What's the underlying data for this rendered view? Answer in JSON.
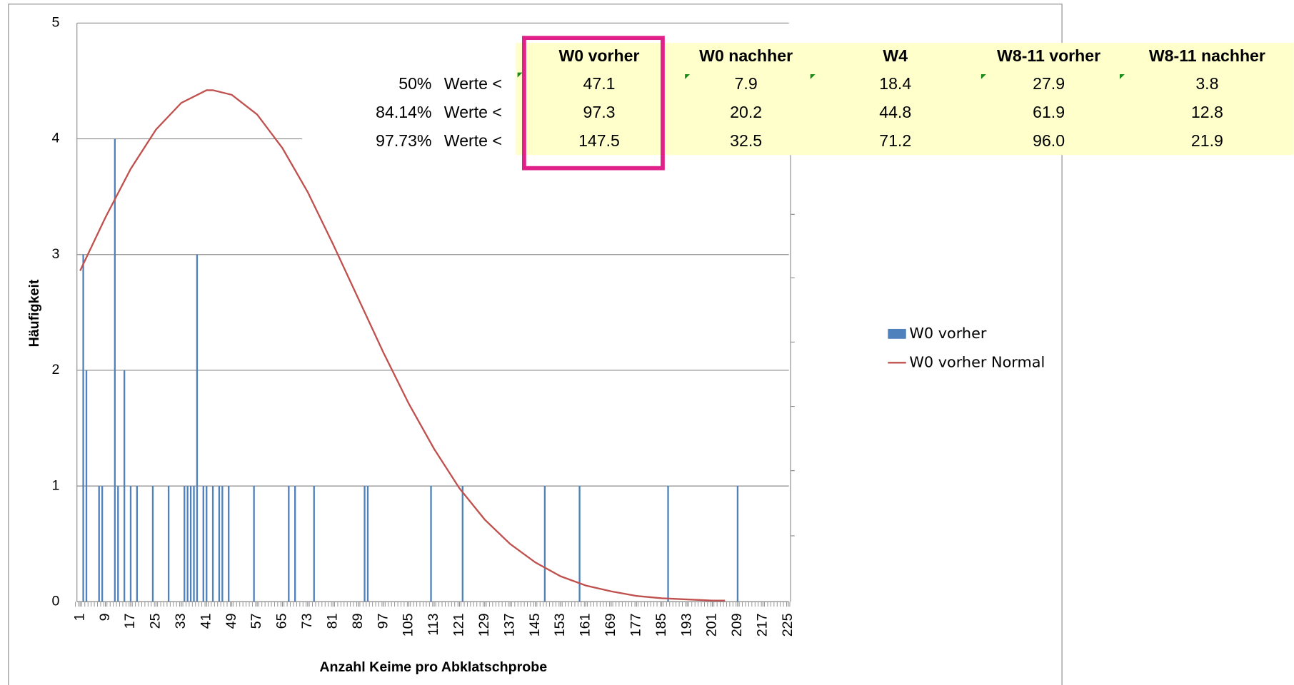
{
  "chart_data": {
    "type": "bar",
    "xlabel": "Anzahl Keime pro Abklatschprobe",
    "ylabel": "Häufigkeit",
    "xlim": [
      0,
      226
    ],
    "xticks": [
      1,
      9,
      17,
      25,
      33,
      41,
      49,
      57,
      65,
      73,
      81,
      89,
      97,
      105,
      113,
      121,
      129,
      137,
      145,
      153,
      161,
      169,
      177,
      185,
      193,
      201,
      209,
      217,
      225
    ],
    "ylim": [
      0,
      5
    ],
    "yticks": [
      0,
      1,
      2,
      3,
      4,
      5
    ],
    "grid": true,
    "legend": "right",
    "series": [
      {
        "name": "W0 vorher",
        "type": "bar",
        "color": "#4f81bd",
        "x": [
          2,
          3,
          7,
          8,
          12,
          13,
          15,
          17,
          19,
          24,
          29,
          34,
          35,
          36,
          37,
          38,
          40,
          41,
          43,
          45,
          46,
          48,
          56,
          67,
          69,
          75,
          91,
          92,
          112,
          122,
          148,
          159,
          187,
          209
        ],
        "values": [
          3,
          2,
          1,
          1,
          4,
          1,
          2,
          1,
          1,
          1,
          1,
          1,
          1,
          1,
          1,
          3,
          1,
          1,
          1,
          1,
          1,
          1,
          1,
          1,
          1,
          1,
          1,
          1,
          1,
          1,
          1,
          1,
          1,
          1
        ]
      },
      {
        "name": "W0 vorher Normal",
        "type": "line",
        "color": "#c0504d",
        "x": [
          1,
          9,
          17,
          25,
          33,
          41,
          43,
          49,
          57,
          65,
          73,
          81,
          89,
          97,
          105,
          113,
          121,
          129,
          137,
          145,
          153,
          161,
          169,
          177,
          185,
          193,
          201,
          205
        ],
        "values": [
          2.86,
          3.32,
          3.74,
          4.08,
          4.31,
          4.42,
          4.42,
          4.38,
          4.21,
          3.92,
          3.54,
          3.09,
          2.62,
          2.15,
          1.71,
          1.32,
          0.98,
          0.71,
          0.5,
          0.34,
          0.22,
          0.14,
          0.09,
          0.05,
          0.03,
          0.02,
          0.01,
          0.01
        ]
      }
    ]
  },
  "table": {
    "columns": [
      "W0 vorher",
      "W0 nachher",
      "W4",
      "W8-11 vorher",
      "W8-11 nachher"
    ],
    "rows": [
      {
        "percent": "50%",
        "label": "Werte <",
        "values": [
          "47.1",
          "7.9",
          "18.4",
          "27.9",
          "3.8"
        ]
      },
      {
        "percent": "84.14%",
        "label": "Werte <",
        "values": [
          "97.3",
          "20.2",
          "44.8",
          "61.9",
          "12.8"
        ]
      },
      {
        "percent": "97.73%",
        "label": "Werte <",
        "values": [
          "147.5",
          "32.5",
          "71.2",
          "96.0",
          "21.9"
        ]
      }
    ]
  }
}
